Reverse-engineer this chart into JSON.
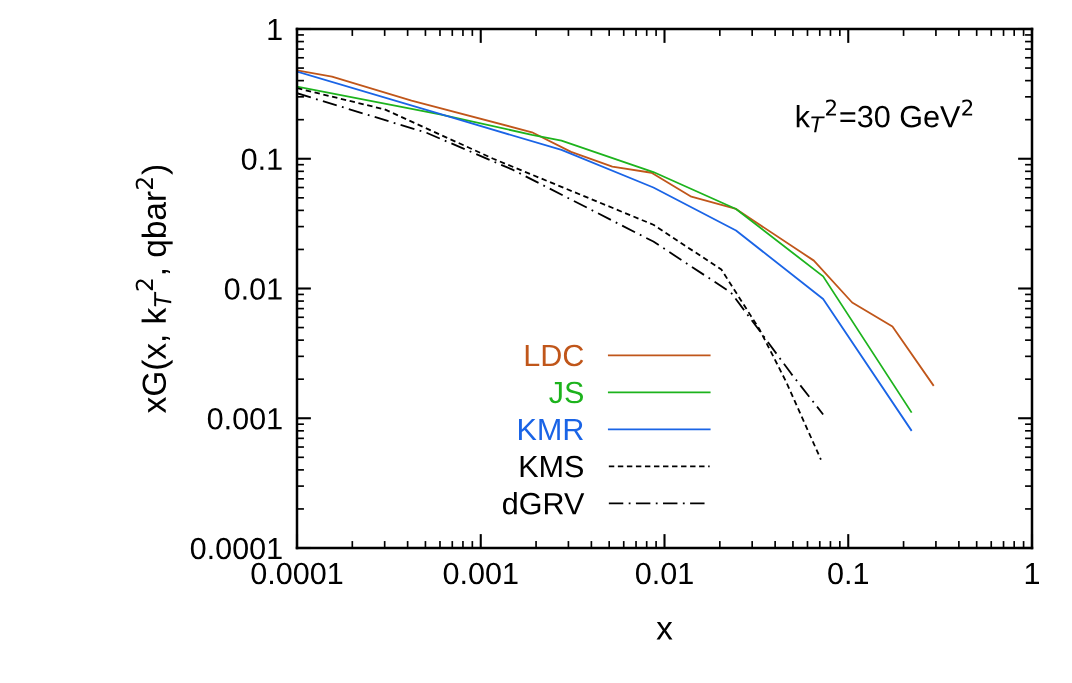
{
  "chart_data": {
    "type": "line",
    "xlabel": "x",
    "ylabel": "xG(x, k$_{T}$$^{2}$, qbar$^{2}$)",
    "annotations": [
      "k$_{T}$$^{2}$=30 GeV$^{2}$"
    ],
    "log": "xy",
    "xlim": [
      0.0001,
      1
    ],
    "ylim": [
      0.0001,
      1
    ],
    "xticks": [
      0.0001,
      0.001,
      0.01,
      0.1,
      1
    ],
    "yticks": [
      0.0001,
      0.001,
      0.01,
      0.1,
      1
    ],
    "grid": false,
    "legend": "bottom",
    "marker": "none",
    "series": [
      {
        "name": "LDC",
        "color": "#c0561a",
        "line_style": "solid",
        "x": [
          0.0001,
          0.000155,
          0.00042,
          0.0019,
          0.0031,
          0.0052,
          0.0085,
          0.014,
          0.0245,
          0.065,
          0.105,
          0.174,
          0.29
        ],
        "values": [
          0.48,
          0.43,
          0.28,
          0.16,
          0.113,
          0.087,
          0.078,
          0.051,
          0.041,
          0.0164,
          0.0078,
          0.0051,
          0.0018
        ]
      },
      {
        "name": "JS",
        "color": "#1db31d",
        "line_style": "solid",
        "x": [
          0.0001,
          0.0006,
          0.0019,
          0.00275,
          0.0087,
          0.0245,
          0.073,
          0.22
        ],
        "values": [
          0.36,
          0.22,
          0.153,
          0.138,
          0.079,
          0.041,
          0.0124,
          0.00112
        ]
      },
      {
        "name": "KMR",
        "color": "#1a64e6",
        "line_style": "solid",
        "x": [
          0.0001,
          0.00068,
          0.00275,
          0.0087,
          0.0245,
          0.073,
          0.22
        ],
        "values": [
          0.47,
          0.21,
          0.117,
          0.06,
          0.028,
          0.0083,
          0.00081
        ]
      },
      {
        "name": "KMS",
        "color": "#000000",
        "line_style": "dashed",
        "x": [
          0.0001,
          0.0003,
          0.00117,
          0.0087,
          0.0204,
          0.033,
          0.046,
          0.071
        ],
        "values": [
          0.35,
          0.24,
          0.1,
          0.031,
          0.014,
          0.0048,
          0.0019,
          0.00048
        ]
      },
      {
        "name": "dGRV",
        "color": "#000000",
        "line_style": "dashdot",
        "x": [
          0.0001,
          0.00051,
          0.0015,
          0.0087,
          0.023,
          0.033,
          0.049,
          0.073
        ],
        "values": [
          0.32,
          0.158,
          0.082,
          0.023,
          0.0093,
          0.0047,
          0.0022,
          0.00107
        ]
      }
    ]
  }
}
